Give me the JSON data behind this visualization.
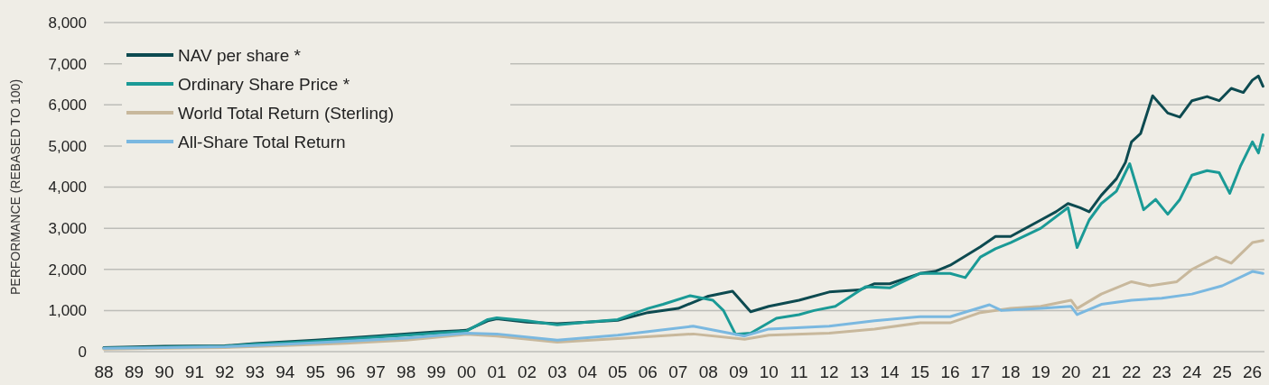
{
  "chart_data": {
    "type": "line",
    "ylabel": "PERFORMANCE (REBASED TO 100)",
    "xlim": [
      1988,
      2026.4
    ],
    "xticks": [
      {
        "value": 1988,
        "label": "88"
      },
      {
        "value": 1989,
        "label": "89"
      },
      {
        "value": 1990,
        "label": "90"
      },
      {
        "value": 1991,
        "label": "91"
      },
      {
        "value": 1992,
        "label": "92"
      },
      {
        "value": 1993,
        "label": "93"
      },
      {
        "value": 1994,
        "label": "94"
      },
      {
        "value": 1995,
        "label": "95"
      },
      {
        "value": 1996,
        "label": "96"
      },
      {
        "value": 1997,
        "label": "97"
      },
      {
        "value": 1998,
        "label": "98"
      },
      {
        "value": 1999,
        "label": "99"
      },
      {
        "value": 2000,
        "label": "00"
      },
      {
        "value": 2001,
        "label": "01"
      },
      {
        "value": 2002,
        "label": "02"
      },
      {
        "value": 2003,
        "label": "03"
      },
      {
        "value": 2004,
        "label": "04"
      },
      {
        "value": 2005,
        "label": "05"
      },
      {
        "value": 2006,
        "label": "06"
      },
      {
        "value": 2007,
        "label": "07"
      },
      {
        "value": 2008,
        "label": "08"
      },
      {
        "value": 2009,
        "label": "09"
      },
      {
        "value": 2010,
        "label": "10"
      },
      {
        "value": 2011,
        "label": "11"
      },
      {
        "value": 2012,
        "label": "12"
      },
      {
        "value": 2013,
        "label": "13"
      },
      {
        "value": 2014,
        "label": "14"
      },
      {
        "value": 2015,
        "label": "15"
      },
      {
        "value": 2016,
        "label": "16"
      },
      {
        "value": 2017,
        "label": "17"
      },
      {
        "value": 2018,
        "label": "18"
      },
      {
        "value": 2019,
        "label": "19"
      },
      {
        "value": 2020,
        "label": "20"
      },
      {
        "value": 2021,
        "label": "21"
      },
      {
        "value": 2022,
        "label": "22"
      },
      {
        "value": 2023,
        "label": "23"
      },
      {
        "value": 2024,
        "label": "24"
      },
      {
        "value": 2025,
        "label": "25"
      },
      {
        "value": 2026,
        "label": "26"
      }
    ],
    "ylim": [
      0,
      8000
    ],
    "yticks": [
      {
        "value": 0,
        "label": "0"
      },
      {
        "value": 1000,
        "label": "1,000"
      },
      {
        "value": 2000,
        "label": "2,000"
      },
      {
        "value": 3000,
        "label": "3,000"
      },
      {
        "value": 4000,
        "label": "4,000"
      },
      {
        "value": 5000,
        "label": "5,000"
      },
      {
        "value": 6000,
        "label": "6,000"
      },
      {
        "value": 7000,
        "label": "7,000"
      },
      {
        "value": 8000,
        "label": "8,000"
      }
    ],
    "grid": "y",
    "legend": "top left",
    "line_style": "solid",
    "marker": "none",
    "series": [
      {
        "name": "NAV per share *",
        "color": "#0d4a50",
        "x": [
          1988,
          1990,
          1992,
          1993,
          1995,
          1997,
          1999,
          2000,
          2000.7,
          2001,
          2002,
          2003,
          2004,
          2005,
          2006,
          2007,
          2008,
          2008.8,
          2009.4,
          2010,
          2011,
          2012,
          2013,
          2013.5,
          2014,
          2015,
          2015.5,
          2016,
          2017,
          2017.5,
          2018,
          2019,
          2019.5,
          2019.9,
          2020.3,
          2020.6,
          2021,
          2021.5,
          2021.8,
          2022,
          2022.3,
          2022.7,
          2023.2,
          2023.6,
          2024,
          2024.5,
          2024.9,
          2025.3,
          2025.7,
          2026,
          2026.2,
          2026.35
        ],
        "values": [
          100,
          130,
          140,
          200,
          280,
          380,
          480,
          520,
          750,
          800,
          720,
          680,
          720,
          760,
          950,
          1050,
          1350,
          1470,
          970,
          1100,
          1250,
          1450,
          1500,
          1650,
          1650,
          1900,
          1950,
          2100,
          2550,
          2800,
          2800,
          3200,
          3400,
          3600,
          3500,
          3400,
          3800,
          4200,
          4600,
          5100,
          5300,
          6220,
          5800,
          5700,
          6100,
          6200,
          6100,
          6400,
          6300,
          6600,
          6700,
          6450
        ]
      },
      {
        "name": "Ordinary Share Price *",
        "color": "#1a9a96",
        "x": [
          1988,
          1990,
          1992,
          1993,
          1995,
          1997,
          1999,
          2000,
          2000.7,
          2001,
          2002,
          2003,
          2004,
          2005,
          2006,
          2006.5,
          2007.4,
          2008.15,
          2008.5,
          2008.9,
          2009.4,
          2010.25,
          2011,
          2011.5,
          2012.2,
          2013.2,
          2014,
          2015,
          2016,
          2016.5,
          2017,
          2017.5,
          2018,
          2019,
          2019.9,
          2020.2,
          2020.6,
          2021,
          2021.5,
          2021.94,
          2022.4,
          2022.8,
          2023.2,
          2023.6,
          2024,
          2024.5,
          2024.9,
          2025.25,
          2025.6,
          2026,
          2026.2,
          2026.35
        ],
        "values": [
          80,
          110,
          130,
          180,
          250,
          350,
          450,
          500,
          780,
          820,
          750,
          650,
          720,
          780,
          1050,
          1150,
          1360,
          1250,
          1000,
          420,
          450,
          810,
          900,
          1000,
          1100,
          1580,
          1550,
          1900,
          1900,
          1800,
          2300,
          2500,
          2650,
          3000,
          3500,
          2530,
          3200,
          3600,
          3900,
          4570,
          3450,
          3700,
          3340,
          3700,
          4290,
          4400,
          4350,
          3850,
          4500,
          5100,
          4830,
          5270
        ]
      },
      {
        "name": "World Total Return (Sterling)",
        "color": "#c8b89c",
        "x": [
          1988,
          1990,
          1992,
          1994,
          1996,
          1998,
          2000,
          2001,
          2003,
          2005,
          2007.5,
          2009.2,
          2010,
          2012,
          2013.5,
          2015,
          2016,
          2017,
          2018,
          2019,
          2020,
          2020.2,
          2021,
          2022,
          2022.6,
          2023.5,
          2024,
          2024.8,
          2025.3,
          2026,
          2026.35
        ],
        "values": [
          60,
          80,
          100,
          150,
          200,
          280,
          420,
          380,
          230,
          320,
          430,
          300,
          400,
          450,
          550,
          700,
          700,
          950,
          1050,
          1100,
          1250,
          1050,
          1400,
          1700,
          1600,
          1700,
          2000,
          2300,
          2150,
          2650,
          2700
        ]
      },
      {
        "name": "All-Share Total Return",
        "color": "#7ab8e0",
        "x": [
          1988,
          1990,
          1992,
          1994,
          1996,
          1998,
          2000,
          2001,
          2003,
          2005,
          2007.5,
          2009.2,
          2010,
          2012,
          2013.5,
          2015,
          2016,
          2017.3,
          2017.7,
          2019,
          2020,
          2020.2,
          2021,
          2022,
          2023,
          2024,
          2025,
          2026,
          2026.35
        ],
        "values": [
          80,
          100,
          120,
          180,
          250,
          330,
          450,
          430,
          280,
          400,
          620,
          380,
          550,
          620,
          750,
          850,
          850,
          1140,
          1000,
          1050,
          1100,
          900,
          1150,
          1250,
          1300,
          1400,
          1600,
          1950,
          1900
        ]
      }
    ]
  }
}
